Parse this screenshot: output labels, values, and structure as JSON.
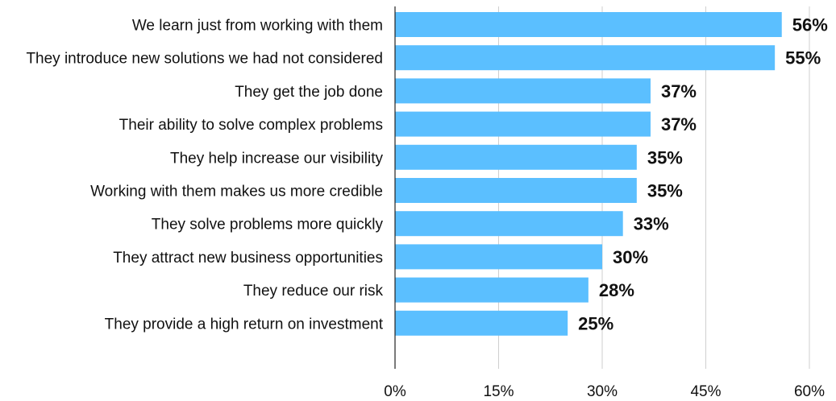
{
  "chart_data": {
    "type": "bar",
    "orientation": "horizontal",
    "categories": [
      "We learn just from working with them",
      "They introduce new solutions we had not considered",
      "They get the job done",
      "Their ability to solve complex problems",
      "They help increase our visibility",
      "Working with them makes us more credible",
      "They solve problems more quickly",
      "They attract new business opportunities",
      "They reduce our risk",
      "They provide a high return on investment"
    ],
    "values": [
      56,
      55,
      37,
      37,
      35,
      35,
      33,
      30,
      28,
      25
    ],
    "value_labels": [
      "56%",
      "55%",
      "37%",
      "37%",
      "35%",
      "35%",
      "33%",
      "30%",
      "28%",
      "25%"
    ],
    "xlim": [
      0,
      60
    ],
    "xticks": [
      0,
      15,
      30,
      45,
      60
    ],
    "xtick_labels": [
      "0%",
      "15%",
      "30%",
      "45%",
      "60%"
    ],
    "title": "",
    "xlabel": "",
    "ylabel": "",
    "grid": "vertical",
    "bar_color": "#5bbfff"
  }
}
